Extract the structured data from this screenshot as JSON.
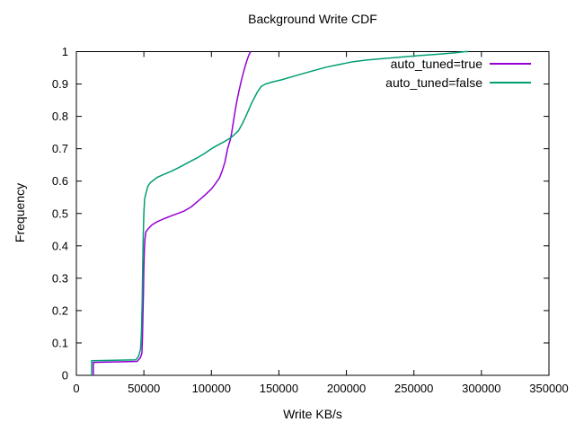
{
  "chart_data": {
    "type": "line",
    "title": "Background Write CDF",
    "xlabel": "Write KB/s",
    "ylabel": "Frequency",
    "xlim": [
      0,
      350000
    ],
    "ylim": [
      0,
      1
    ],
    "grid": false,
    "legend_position": "top-right-inside",
    "xticks": [
      {
        "v": 0,
        "label": "0"
      },
      {
        "v": 50000,
        "label": "50000"
      },
      {
        "v": 100000,
        "label": "100000"
      },
      {
        "v": 150000,
        "label": "150000"
      },
      {
        "v": 200000,
        "label": "200000"
      },
      {
        "v": 250000,
        "label": "250000"
      },
      {
        "v": 300000,
        "label": "300000"
      },
      {
        "v": 350000,
        "label": "350000"
      }
    ],
    "yticks": [
      {
        "v": 0,
        "label": "0"
      },
      {
        "v": 0.1,
        "label": "0.1"
      },
      {
        "v": 0.2,
        "label": "0.2"
      },
      {
        "v": 0.3,
        "label": "0.3"
      },
      {
        "v": 0.4,
        "label": "0.4"
      },
      {
        "v": 0.5,
        "label": "0.5"
      },
      {
        "v": 0.6,
        "label": "0.6"
      },
      {
        "v": 0.7,
        "label": "0.7"
      },
      {
        "v": 0.8,
        "label": "0.8"
      },
      {
        "v": 0.9,
        "label": "0.9"
      },
      {
        "v": 1,
        "label": "1"
      }
    ],
    "series": [
      {
        "name": "auto_tuned=true",
        "color": "#9400d3",
        "points": [
          [
            12600,
            0
          ],
          [
            12600,
            0.04
          ],
          [
            45000,
            0.043
          ],
          [
            47500,
            0.055
          ],
          [
            48600,
            0.07
          ],
          [
            49000,
            0.12
          ],
          [
            49300,
            0.19
          ],
          [
            49700,
            0.26
          ],
          [
            50000,
            0.33
          ],
          [
            50300,
            0.38
          ],
          [
            50800,
            0.42
          ],
          [
            51500,
            0.443
          ],
          [
            53000,
            0.452
          ],
          [
            56000,
            0.465
          ],
          [
            60000,
            0.475
          ],
          [
            65000,
            0.484
          ],
          [
            70000,
            0.492
          ],
          [
            75000,
            0.5
          ],
          [
            80000,
            0.508
          ],
          [
            85000,
            0.52
          ],
          [
            90000,
            0.538
          ],
          [
            95000,
            0.556
          ],
          [
            100000,
            0.576
          ],
          [
            103000,
            0.592
          ],
          [
            106000,
            0.61
          ],
          [
            108000,
            0.632
          ],
          [
            110000,
            0.658
          ],
          [
            112000,
            0.7
          ],
          [
            114000,
            0.728
          ],
          [
            115000,
            0.748
          ],
          [
            116000,
            0.775
          ],
          [
            117500,
            0.815
          ],
          [
            119000,
            0.85
          ],
          [
            120500,
            0.88
          ],
          [
            122000,
            0.907
          ],
          [
            123500,
            0.932
          ],
          [
            125000,
            0.955
          ],
          [
            126500,
            0.975
          ],
          [
            127800,
            0.99
          ],
          [
            129000,
            1.0
          ]
        ]
      },
      {
        "name": "auto_tuned=false",
        "color": "#009e73",
        "points": [
          [
            11300,
            0
          ],
          [
            11300,
            0.045
          ],
          [
            44000,
            0.048
          ],
          [
            46000,
            0.058
          ],
          [
            47500,
            0.08
          ],
          [
            48200,
            0.13
          ],
          [
            48700,
            0.22
          ],
          [
            49100,
            0.33
          ],
          [
            49500,
            0.42
          ],
          [
            50000,
            0.5
          ],
          [
            50600,
            0.545
          ],
          [
            51500,
            0.562
          ],
          [
            53000,
            0.585
          ],
          [
            55000,
            0.596
          ],
          [
            60000,
            0.612
          ],
          [
            65000,
            0.621
          ],
          [
            70000,
            0.63
          ],
          [
            75000,
            0.64
          ],
          [
            80000,
            0.651
          ],
          [
            85000,
            0.662
          ],
          [
            90000,
            0.673
          ],
          [
            95000,
            0.686
          ],
          [
            100000,
            0.7
          ],
          [
            105000,
            0.712
          ],
          [
            110000,
            0.723
          ],
          [
            115000,
            0.736
          ],
          [
            120000,
            0.755
          ],
          [
            123000,
            0.778
          ],
          [
            126000,
            0.805
          ],
          [
            130000,
            0.843
          ],
          [
            134000,
            0.875
          ],
          [
            137000,
            0.893
          ],
          [
            140000,
            0.9
          ],
          [
            145000,
            0.906
          ],
          [
            152000,
            0.913
          ],
          [
            160000,
            0.923
          ],
          [
            172000,
            0.937
          ],
          [
            185000,
            0.952
          ],
          [
            198000,
            0.963
          ],
          [
            205000,
            0.969
          ],
          [
            215000,
            0.974
          ],
          [
            228000,
            0.979
          ],
          [
            240000,
            0.983
          ],
          [
            255000,
            0.988
          ],
          [
            268000,
            0.992
          ],
          [
            280000,
            0.996
          ],
          [
            288000,
            1.0
          ],
          [
            290000,
            1.0
          ]
        ]
      }
    ]
  }
}
